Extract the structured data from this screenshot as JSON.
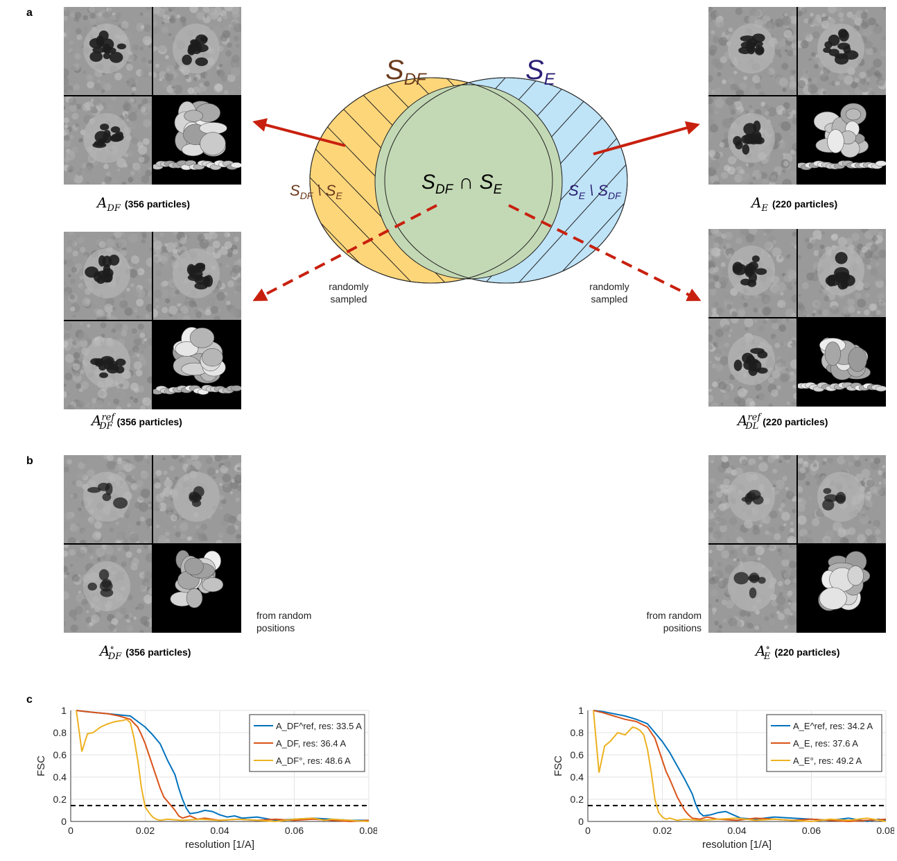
{
  "panels": {
    "a": "a",
    "b": "b",
    "c": "c"
  },
  "venn": {
    "label_left": "S",
    "label_left_sub": "DF",
    "label_right": "S",
    "label_right_sub": "E",
    "center": "S",
    "center_sub1": "DF",
    "center_op": " ∩ S",
    "center_sub2": "E",
    "left_only": "S",
    "left_only_sub": "DF",
    "left_only_op": " \\ S",
    "left_only_sub2": "E",
    "right_only": "S",
    "right_only_sub": "E",
    "right_only_op": " \\ S",
    "right_only_sub2": "DF",
    "colors": {
      "left": "#fdd67a",
      "right": "#bfe3f7",
      "overlap": "#c3d9b5",
      "arrow": "#c8200e",
      "label_left": "#6b3a1d",
      "label_right": "#2b2075"
    }
  },
  "notes": {
    "sampled_left": [
      "randomly",
      "sampled"
    ],
    "sampled_right": [
      "randomly",
      "sampled"
    ],
    "random_left": [
      "from random",
      "positions"
    ],
    "random_right": [
      "from random",
      "positions"
    ]
  },
  "captions": {
    "a_df": {
      "sym": "A",
      "sub": "DF",
      "sup": "",
      "count": "(356 particles)"
    },
    "a_e": {
      "sym": "A",
      "sub": "E",
      "sup": "",
      "count": "(220 particles)"
    },
    "a_df_ref": {
      "sym": "A",
      "sub": "DF",
      "sup": "ref",
      "count": "(356 particles)"
    },
    "a_dl_ref": {
      "sym": "A",
      "sub": "DL",
      "sup": "ref",
      "count": "(220 particles)"
    },
    "a_df_rand": {
      "sym": "A",
      "sub": "DF",
      "sup": "∘",
      "count": "(356 particles)"
    },
    "a_e_rand": {
      "sym": "A",
      "sub": "E",
      "sup": "∘",
      "count": "(220 particles)"
    }
  },
  "chart_data": [
    {
      "type": "line",
      "xlabel": "resolution [1/A]",
      "ylabel": "FSC",
      "xlim": [
        0,
        0.08
      ],
      "ylim": [
        0,
        1
      ],
      "xticks": [
        "0",
        "0.02",
        "0.04",
        "0.06",
        "0.08"
      ],
      "yticks": [
        "0",
        "0.2",
        "0.4",
        "0.6",
        "0.8",
        "1"
      ],
      "threshold": 0.143,
      "grid": true,
      "legend_position": "top-right",
      "series": [
        {
          "name": "A_DF^ref, res: 33.5 A",
          "color": "#0072bd",
          "x": [
            0.0015,
            0.004,
            0.007,
            0.01,
            0.013,
            0.016,
            0.018,
            0.02,
            0.022,
            0.024,
            0.026,
            0.028,
            0.029,
            0.03,
            0.031,
            0.032,
            0.034,
            0.036,
            0.038,
            0.04,
            0.042,
            0.044,
            0.046,
            0.05,
            0.055,
            0.06,
            0.065,
            0.07,
            0.075,
            0.08
          ],
          "y": [
            1,
            0.99,
            0.98,
            0.97,
            0.96,
            0.95,
            0.9,
            0.85,
            0.78,
            0.7,
            0.55,
            0.42,
            0.3,
            0.2,
            0.12,
            0.07,
            0.08,
            0.1,
            0.09,
            0.06,
            0.04,
            0.05,
            0.03,
            0.04,
            0.01,
            0.02,
            0.03,
            0.02,
            0.01,
            0.01
          ]
        },
        {
          "name": "A_DF, res: 36.4 A",
          "color": "#d95319",
          "x": [
            0.0015,
            0.004,
            0.007,
            0.01,
            0.013,
            0.016,
            0.018,
            0.019,
            0.02,
            0.021,
            0.022,
            0.023,
            0.024,
            0.025,
            0.026,
            0.027,
            0.028,
            0.029,
            0.03,
            0.032,
            0.034,
            0.036,
            0.04,
            0.045,
            0.05,
            0.055,
            0.06,
            0.065,
            0.07,
            0.075,
            0.08
          ],
          "y": [
            1,
            0.99,
            0.98,
            0.97,
            0.95,
            0.92,
            0.85,
            0.78,
            0.7,
            0.6,
            0.5,
            0.4,
            0.3,
            0.22,
            0.18,
            0.14,
            0.1,
            0.05,
            0.03,
            0.05,
            0.02,
            0.03,
            0.01,
            0.02,
            0.01,
            0.02,
            0.01,
            0.02,
            0.01,
            0.0,
            0.01
          ]
        },
        {
          "name": "A_DF°, res: 48.6 A",
          "color": "#edb120",
          "x": [
            0.0015,
            0.003,
            0.0045,
            0.006,
            0.008,
            0.01,
            0.012,
            0.014,
            0.015,
            0.016,
            0.017,
            0.018,
            0.019,
            0.02,
            0.021,
            0.022,
            0.023,
            0.024,
            0.026,
            0.03,
            0.035,
            0.04,
            0.045,
            0.05,
            0.055,
            0.06,
            0.065,
            0.068,
            0.07,
            0.075,
            0.08
          ],
          "y": [
            1,
            0.63,
            0.79,
            0.8,
            0.85,
            0.88,
            0.9,
            0.91,
            0.92,
            0.89,
            0.75,
            0.55,
            0.3,
            0.13,
            0.08,
            0.04,
            0.02,
            0.01,
            0.02,
            0.01,
            0.02,
            0.01,
            0.02,
            0.01,
            0.0,
            0.02,
            0.03,
            0.01,
            0.02,
            0.01,
            0.0
          ]
        }
      ]
    },
    {
      "type": "line",
      "xlabel": "resolution [1/A]",
      "ylabel": "FSC",
      "xlim": [
        0,
        0.08
      ],
      "ylim": [
        0,
        1
      ],
      "xticks": [
        "0",
        "0.02",
        "0.04",
        "0.06",
        "0.08"
      ],
      "yticks": [
        "0",
        "0.2",
        "0.4",
        "0.6",
        "0.8",
        "1"
      ],
      "threshold": 0.143,
      "grid": true,
      "legend_position": "top-right",
      "series": [
        {
          "name": "A_E^ref, res: 34.2 A",
          "color": "#0072bd",
          "x": [
            0.0015,
            0.004,
            0.007,
            0.01,
            0.013,
            0.016,
            0.018,
            0.02,
            0.022,
            0.024,
            0.026,
            0.028,
            0.029,
            0.03,
            0.031,
            0.033,
            0.035,
            0.037,
            0.039,
            0.041,
            0.045,
            0.05,
            0.055,
            0.06,
            0.065,
            0.07,
            0.075,
            0.078,
            0.08
          ],
          "y": [
            1,
            0.99,
            0.97,
            0.95,
            0.92,
            0.88,
            0.8,
            0.72,
            0.62,
            0.5,
            0.38,
            0.25,
            0.15,
            0.08,
            0.05,
            0.06,
            0.08,
            0.09,
            0.06,
            0.03,
            0.02,
            0.04,
            0.03,
            0.02,
            0.01,
            0.03,
            0.0,
            0.02,
            0.01
          ]
        },
        {
          "name": "A_E, res: 37.6 A",
          "color": "#d95319",
          "x": [
            0.0015,
            0.004,
            0.007,
            0.01,
            0.013,
            0.016,
            0.018,
            0.019,
            0.02,
            0.021,
            0.022,
            0.023,
            0.024,
            0.025,
            0.026,
            0.027,
            0.028,
            0.03,
            0.032,
            0.035,
            0.04,
            0.045,
            0.05,
            0.055,
            0.06,
            0.065,
            0.07,
            0.075,
            0.08
          ],
          "y": [
            1,
            0.98,
            0.95,
            0.92,
            0.9,
            0.85,
            0.75,
            0.65,
            0.55,
            0.45,
            0.38,
            0.3,
            0.22,
            0.16,
            0.1,
            0.06,
            0.03,
            0.02,
            0.04,
            0.02,
            0.01,
            0.03,
            0.02,
            0.01,
            0.02,
            0.01,
            0.0,
            0.01,
            0.02
          ]
        },
        {
          "name": "A_E°, res: 49.2 A",
          "color": "#edb120",
          "x": [
            0.0015,
            0.003,
            0.0045,
            0.006,
            0.008,
            0.01,
            0.012,
            0.013,
            0.014,
            0.015,
            0.016,
            0.017,
            0.018,
            0.019,
            0.02,
            0.021,
            0.022,
            0.024,
            0.026,
            0.03,
            0.035,
            0.04,
            0.045,
            0.05,
            0.055,
            0.06,
            0.065,
            0.07,
            0.075,
            0.08
          ],
          "y": [
            1,
            0.44,
            0.68,
            0.72,
            0.8,
            0.78,
            0.85,
            0.84,
            0.82,
            0.78,
            0.65,
            0.45,
            0.2,
            0.08,
            0.04,
            0.02,
            0.03,
            0.01,
            0.02,
            0.01,
            0.02,
            0.03,
            0.01,
            0.02,
            0.01,
            0.0,
            0.02,
            0.01,
            0.03,
            0.0
          ]
        }
      ]
    }
  ]
}
